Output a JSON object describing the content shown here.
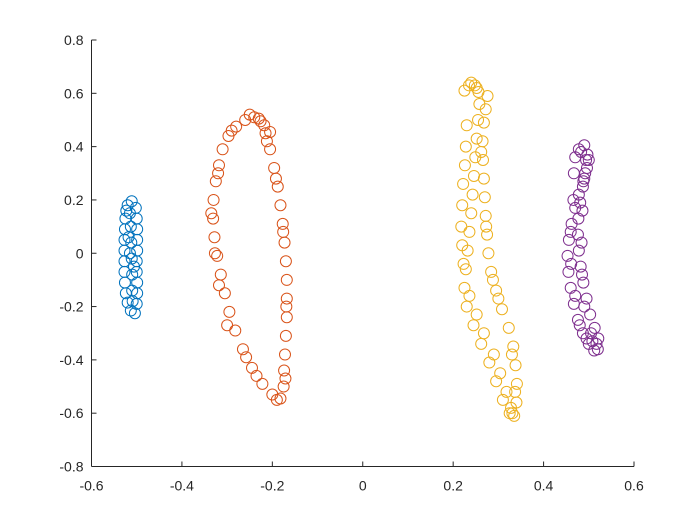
{
  "chart_data": {
    "type": "scatter",
    "title": "",
    "xlabel": "",
    "ylabel": "",
    "xlim": [
      -0.6,
      0.6
    ],
    "ylim": [
      -0.8,
      0.8
    ],
    "xticks": [
      -0.6,
      -0.4,
      -0.2,
      0,
      0.2,
      0.4,
      0.6
    ],
    "yticks": [
      -0.8,
      -0.6,
      -0.4,
      -0.2,
      0,
      0.2,
      0.4,
      0.6,
      0.8
    ],
    "xtick_labels": [
      "-0.6",
      "-0.4",
      "-0.2",
      "0",
      "0.2",
      "0.4",
      "0.6"
    ],
    "ytick_labels": [
      "-0.8",
      "-0.6",
      "-0.4",
      "-0.2",
      "0",
      "0.2",
      "0.4",
      "0.6",
      "0.8"
    ],
    "grid": false,
    "legend": "none",
    "marker": "open-circle",
    "series": [
      {
        "color": "#0072BD",
        "points": [
          [
            -0.52,
            0.18
          ],
          [
            -0.511,
            0.195
          ],
          [
            -0.502,
            0.17
          ],
          [
            -0.5,
            0.13
          ],
          [
            -0.499,
            0.09
          ],
          [
            -0.499,
            0.05
          ],
          [
            -0.499,
            0.01
          ],
          [
            -0.5,
            -0.03
          ],
          [
            -0.5,
            -0.07
          ],
          [
            -0.499,
            -0.11
          ],
          [
            -0.499,
            -0.15
          ],
          [
            -0.5,
            -0.19
          ],
          [
            -0.504,
            -0.225
          ],
          [
            -0.513,
            -0.215
          ],
          [
            -0.52,
            -0.185
          ],
          [
            -0.524,
            -0.15
          ],
          [
            -0.526,
            -0.11
          ],
          [
            -0.527,
            -0.07
          ],
          [
            -0.527,
            -0.03
          ],
          [
            -0.527,
            0.01
          ],
          [
            -0.527,
            0.05
          ],
          [
            -0.526,
            0.09
          ],
          [
            -0.525,
            0.13
          ],
          [
            -0.523,
            0.16
          ],
          [
            -0.515,
            0.15
          ],
          [
            -0.513,
            0.1
          ],
          [
            -0.512,
            0.04
          ],
          [
            -0.511,
            -0.02
          ],
          [
            -0.51,
            -0.08
          ],
          [
            -0.51,
            -0.14
          ],
          [
            -0.515,
            0.0
          ],
          [
            -0.509,
            -0.18
          ],
          [
            -0.518,
            0.06
          ],
          [
            -0.506,
            -0.05
          ]
        ]
      },
      {
        "color": "#D95319",
        "points": [
          [
            -0.24,
            0.51
          ],
          [
            -0.26,
            0.5
          ],
          [
            -0.28,
            0.475
          ],
          [
            -0.297,
            0.44
          ],
          [
            -0.31,
            0.39
          ],
          [
            -0.318,
            0.33
          ],
          [
            -0.325,
            0.27
          ],
          [
            -0.33,
            0.2
          ],
          [
            -0.331,
            0.13
          ],
          [
            -0.328,
            0.06
          ],
          [
            -0.322,
            -0.01
          ],
          [
            -0.314,
            -0.08
          ],
          [
            -0.305,
            -0.15
          ],
          [
            -0.295,
            -0.22
          ],
          [
            -0.282,
            -0.29
          ],
          [
            -0.265,
            -0.36
          ],
          [
            -0.245,
            -0.43
          ],
          [
            -0.222,
            -0.49
          ],
          [
            -0.2,
            -0.53
          ],
          [
            -0.182,
            -0.545
          ],
          [
            -0.175,
            -0.5
          ],
          [
            -0.174,
            -0.44
          ],
          [
            -0.172,
            -0.38
          ],
          [
            -0.17,
            -0.31
          ],
          [
            -0.168,
            -0.24
          ],
          [
            -0.168,
            -0.17
          ],
          [
            -0.168,
            -0.1
          ],
          [
            -0.17,
            -0.03
          ],
          [
            -0.173,
            0.04
          ],
          [
            -0.177,
            0.11
          ],
          [
            -0.182,
            0.18
          ],
          [
            -0.188,
            0.25
          ],
          [
            -0.196,
            0.32
          ],
          [
            -0.205,
            0.39
          ],
          [
            -0.215,
            0.45
          ],
          [
            -0.226,
            0.495
          ],
          [
            -0.218,
            0.48
          ],
          [
            -0.205,
            0.455
          ],
          [
            -0.25,
            0.52
          ],
          [
            -0.23,
            0.505
          ],
          [
            -0.29,
            0.46
          ],
          [
            -0.32,
            0.3
          ],
          [
            -0.327,
            0.0
          ],
          [
            -0.3,
            -0.27
          ],
          [
            -0.235,
            -0.46
          ],
          [
            -0.19,
            -0.55
          ],
          [
            -0.171,
            -0.47
          ],
          [
            -0.169,
            -0.2
          ],
          [
            -0.176,
            0.08
          ],
          [
            -0.192,
            0.28
          ],
          [
            -0.212,
            0.42
          ],
          [
            -0.335,
            0.15
          ],
          [
            -0.318,
            -0.12
          ],
          [
            -0.258,
            -0.39
          ]
        ]
      },
      {
        "color": "#EDB120",
        "points": [
          [
            0.225,
            0.61
          ],
          [
            0.235,
            0.63
          ],
          [
            0.248,
            0.63
          ],
          [
            0.256,
            0.605
          ],
          [
            0.258,
            0.56
          ],
          [
            0.255,
            0.5
          ],
          [
            0.252,
            0.43
          ],
          [
            0.249,
            0.36
          ],
          [
            0.246,
            0.29
          ],
          [
            0.243,
            0.22
          ],
          [
            0.24,
            0.15
          ],
          [
            0.236,
            0.08
          ],
          [
            0.232,
            0.01
          ],
          [
            0.228,
            -0.06
          ],
          [
            0.225,
            -0.13
          ],
          [
            0.23,
            -0.2
          ],
          [
            0.245,
            -0.27
          ],
          [
            0.262,
            -0.34
          ],
          [
            0.28,
            -0.41
          ],
          [
            0.295,
            -0.48
          ],
          [
            0.31,
            -0.55
          ],
          [
            0.325,
            -0.6
          ],
          [
            0.335,
            -0.61
          ],
          [
            0.34,
            -0.56
          ],
          [
            0.341,
            -0.49
          ],
          [
            0.338,
            -0.42
          ],
          [
            0.333,
            -0.35
          ],
          [
            0.323,
            -0.28
          ],
          [
            0.308,
            -0.21
          ],
          [
            0.295,
            -0.14
          ],
          [
            0.284,
            -0.07
          ],
          [
            0.278,
            0.0
          ],
          [
            0.275,
            0.07
          ],
          [
            0.272,
            0.14
          ],
          [
            0.27,
            0.21
          ],
          [
            0.268,
            0.28
          ],
          [
            0.266,
            0.35
          ],
          [
            0.265,
            0.42
          ],
          [
            0.268,
            0.49
          ],
          [
            0.272,
            0.54
          ],
          [
            0.276,
            0.59
          ],
          [
            0.23,
            0.48
          ],
          [
            0.228,
            0.4
          ],
          [
            0.226,
            0.33
          ],
          [
            0.222,
            0.26
          ],
          [
            0.22,
            0.18
          ],
          [
            0.218,
            0.1
          ],
          [
            0.22,
            0.03
          ],
          [
            0.223,
            -0.04
          ],
          [
            0.236,
            -0.16
          ],
          [
            0.252,
            -0.23
          ],
          [
            0.268,
            -0.3
          ],
          [
            0.29,
            -0.38
          ],
          [
            0.304,
            -0.45
          ],
          [
            0.318,
            -0.52
          ],
          [
            0.328,
            -0.58
          ],
          [
            0.331,
            -0.6
          ],
          [
            0.337,
            -0.52
          ],
          [
            0.33,
            -0.38
          ],
          [
            0.3,
            -0.17
          ],
          [
            0.288,
            -0.1
          ],
          [
            0.273,
            0.1
          ],
          [
            0.262,
            0.38
          ],
          [
            0.24,
            0.64
          ],
          [
            0.252,
            0.62
          ]
        ]
      },
      {
        "color": "#7E2F8E",
        "points": [
          [
            0.478,
            0.39
          ],
          [
            0.49,
            0.405
          ],
          [
            0.497,
            0.37
          ],
          [
            0.496,
            0.32
          ],
          [
            0.488,
            0.27
          ],
          [
            0.478,
            0.22
          ],
          [
            0.47,
            0.17
          ],
          [
            0.462,
            0.11
          ],
          [
            0.456,
            0.05
          ],
          [
            0.453,
            -0.01
          ],
          [
            0.455,
            -0.07
          ],
          [
            0.46,
            -0.13
          ],
          [
            0.467,
            -0.19
          ],
          [
            0.476,
            -0.25
          ],
          [
            0.487,
            -0.3
          ],
          [
            0.5,
            -0.34
          ],
          [
            0.512,
            -0.365
          ],
          [
            0.52,
            -0.36
          ],
          [
            0.521,
            -0.32
          ],
          [
            0.513,
            -0.28
          ],
          [
            0.503,
            -0.23
          ],
          [
            0.495,
            -0.17
          ],
          [
            0.488,
            -0.11
          ],
          [
            0.482,
            -0.05
          ],
          [
            0.478,
            0.01
          ],
          [
            0.476,
            0.07
          ],
          [
            0.477,
            0.13
          ],
          [
            0.481,
            0.19
          ],
          [
            0.487,
            0.25
          ],
          [
            0.492,
            0.3
          ],
          [
            0.494,
            0.35
          ],
          [
            0.483,
            0.38
          ],
          [
            0.47,
            0.36
          ],
          [
            0.467,
            0.3
          ],
          [
            0.466,
            0.2
          ],
          [
            0.46,
            0.08
          ],
          [
            0.461,
            -0.04
          ],
          [
            0.47,
            -0.16
          ],
          [
            0.48,
            -0.27
          ],
          [
            0.495,
            -0.32
          ],
          [
            0.508,
            -0.33
          ],
          [
            0.517,
            -0.34
          ],
          [
            0.505,
            -0.3
          ],
          [
            0.49,
            -0.2
          ],
          [
            0.485,
            -0.08
          ],
          [
            0.484,
            0.04
          ],
          [
            0.486,
            0.16
          ],
          [
            0.49,
            0.28
          ],
          [
            0.5,
            0.35
          ]
        ]
      }
    ]
  }
}
